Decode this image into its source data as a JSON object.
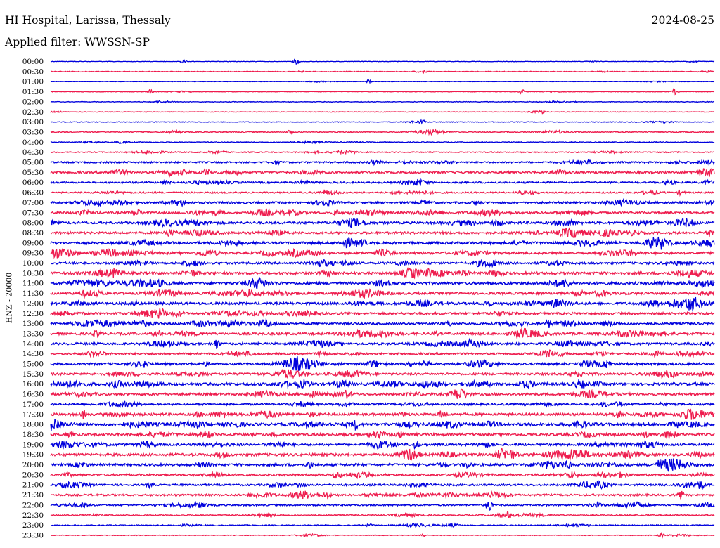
{
  "header": {
    "station": "HI Hospital, Larissa, Thessaly",
    "date": "2024-08-25",
    "filter": "Applied filter: WWSSN-SP"
  },
  "chart_data": {
    "type": "line",
    "title": "HI Hospital, Larissa, Thessaly",
    "ylabel": "HNZ - 20000",
    "xlabel": "",
    "grid": false,
    "legend": "none",
    "categories": [
      "00:00",
      "00:30",
      "01:00",
      "01:30",
      "02:00",
      "02:30",
      "03:00",
      "03:30",
      "04:00",
      "04:30",
      "05:00",
      "05:30",
      "06:00",
      "06:30",
      "07:00",
      "07:30",
      "08:00",
      "08:30",
      "09:00",
      "09:30",
      "10:00",
      "10:30",
      "11:00",
      "11:30",
      "12:00",
      "12:30",
      "13:00",
      "13:30",
      "14:00",
      "14:30",
      "15:00",
      "15:30",
      "16:00",
      "16:30",
      "17:00",
      "17:30",
      "18:00",
      "18:30",
      "19:00",
      "19:30",
      "20:00",
      "20:30",
      "21:00",
      "21:30",
      "22:00",
      "22:30",
      "23:00",
      "23:30"
    ],
    "colors": {
      "even_rows": "#0000dd",
      "odd_rows": "#ee1c4e"
    },
    "noise_level": [
      0.35,
      0.6,
      0.3,
      0.4,
      0.45,
      0.45,
      0.5,
      0.8,
      0.6,
      0.75,
      1.2,
      1.6,
      1.3,
      1.1,
      1.5,
      1.6,
      1.8,
      1.7,
      1.9,
      1.8,
      1.6,
      1.9,
      2.0,
      1.8,
      1.9,
      1.7,
      1.6,
      1.8,
      1.7,
      1.6,
      1.8,
      1.7,
      2.0,
      1.8,
      1.5,
      1.9,
      2.2,
      1.9,
      1.7,
      2.0,
      1.8,
      1.6,
      1.4,
      1.4,
      1.2,
      0.9,
      0.8,
      0.5
    ],
    "events": [
      {
        "row": 0,
        "t": 0.37,
        "amp": 4
      },
      {
        "row": 0,
        "t": 0.2,
        "amp": 2.5
      },
      {
        "row": 2,
        "t": 0.48,
        "amp": 2.5
      },
      {
        "row": 3,
        "t": 0.15,
        "amp": 3
      },
      {
        "row": 3,
        "t": 0.71,
        "amp": 3
      },
      {
        "row": 3,
        "t": 0.94,
        "amp": 4
      },
      {
        "row": 5,
        "t": 0.74,
        "amp": 3
      },
      {
        "row": 6,
        "t": 0.56,
        "amp": 3
      },
      {
        "row": 7,
        "t": 0.36,
        "amp": 3
      },
      {
        "row": 11,
        "t": 0.18,
        "amp": 6
      },
      {
        "row": 13,
        "t": 0.71,
        "amp": 4
      },
      {
        "row": 15,
        "t": 0.43,
        "amp": 4
      },
      {
        "row": 21,
        "t": 0.57,
        "amp": 5
      },
      {
        "row": 24,
        "t": 0.13,
        "amp": 4
      },
      {
        "row": 24,
        "t": 0.76,
        "amp": 4
      },
      {
        "row": 26,
        "t": 0.6,
        "amp": 4
      },
      {
        "row": 26,
        "t": 0.75,
        "amp": 5
      },
      {
        "row": 28,
        "t": 0.25,
        "amp": 8
      },
      {
        "row": 30,
        "t": 0.54,
        "amp": 3
      },
      {
        "row": 30,
        "t": 0.84,
        "amp": 6
      },
      {
        "row": 35,
        "t": 0.05,
        "amp": 5
      },
      {
        "row": 36,
        "t": 0.46,
        "amp": 5
      },
      {
        "row": 38,
        "t": 0.55,
        "amp": 6
      },
      {
        "row": 40,
        "t": 0.39,
        "amp": 5
      },
      {
        "row": 40,
        "t": 0.78,
        "amp": 5
      },
      {
        "row": 42,
        "t": 0.15,
        "amp": 4
      },
      {
        "row": 42,
        "t": 0.98,
        "amp": 5
      },
      {
        "row": 43,
        "t": 0.95,
        "amp": 5
      },
      {
        "row": 44,
        "t": 0.05,
        "amp": 4
      },
      {
        "row": 44,
        "t": 0.66,
        "amp": 9
      },
      {
        "row": 45,
        "t": 0.69,
        "amp": 3
      },
      {
        "row": 47,
        "t": 0.56,
        "amp": 2.5
      },
      {
        "row": 47,
        "t": 0.92,
        "amp": 3
      }
    ]
  }
}
